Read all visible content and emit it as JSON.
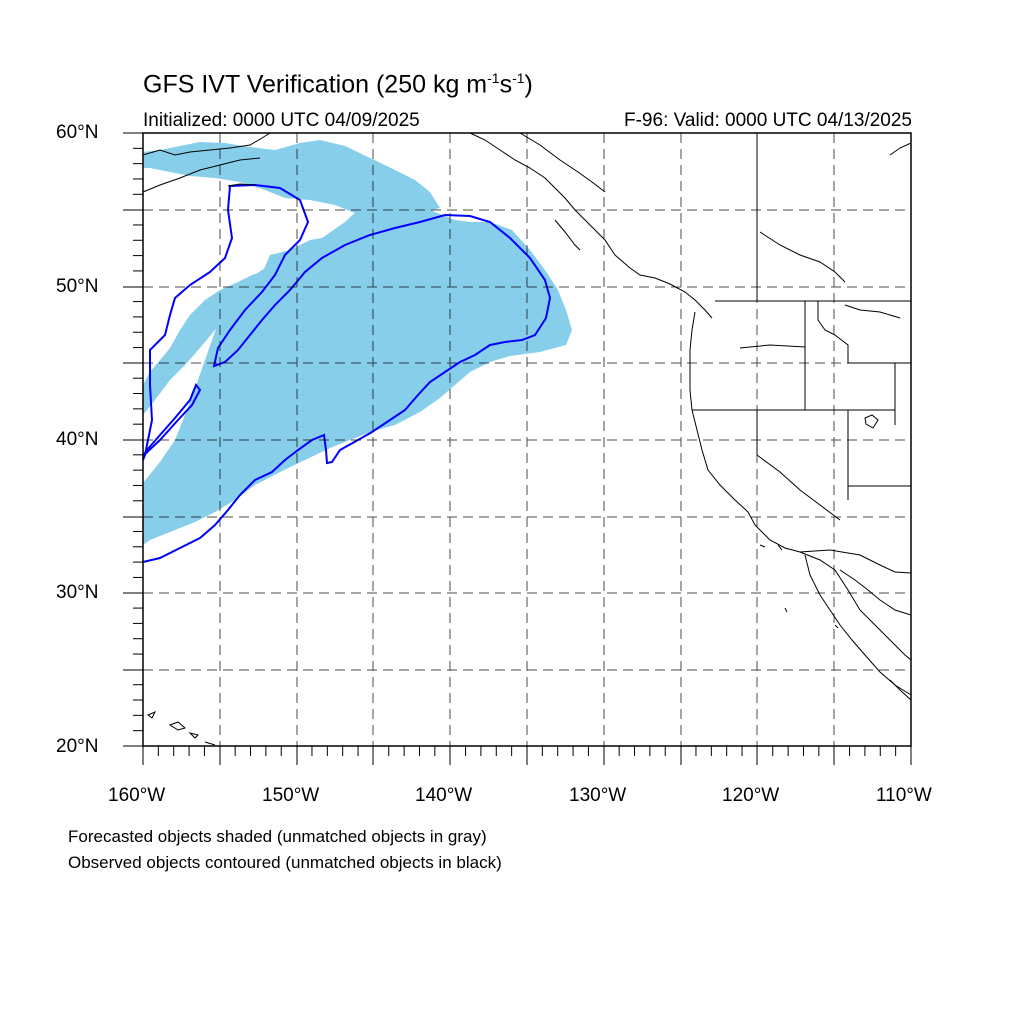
{
  "title": "GFS IVT Verification (250 kg m",
  "title_unit_exp1": "-1",
  "title_unit_mid": "s",
  "title_unit_exp2": "-1",
  "title_close": ")",
  "initialized": "Initialized: 0000 UTC 04/09/2025",
  "valid": "F-96: Valid: 0000 UTC 04/13/2025",
  "lat_labels": [
    "60°N",
    "50°N",
    "40°N",
    "30°N",
    "20°N"
  ],
  "lon_labels": [
    "160°W",
    "150°W",
    "140°W",
    "130°W",
    "120°W",
    "110°W"
  ],
  "footer": {
    "line1": "Forecasted objects shaded (unmatched objects in gray)",
    "line2": "Observed objects contoured (unmatched objects in black)"
  },
  "map": {
    "lon_range": [
      -160,
      -110
    ],
    "lat_range": [
      20,
      60
    ],
    "forecast_color": "#87ceeb",
    "observed_color": "#0000ff",
    "coast_color": "#000000"
  }
}
